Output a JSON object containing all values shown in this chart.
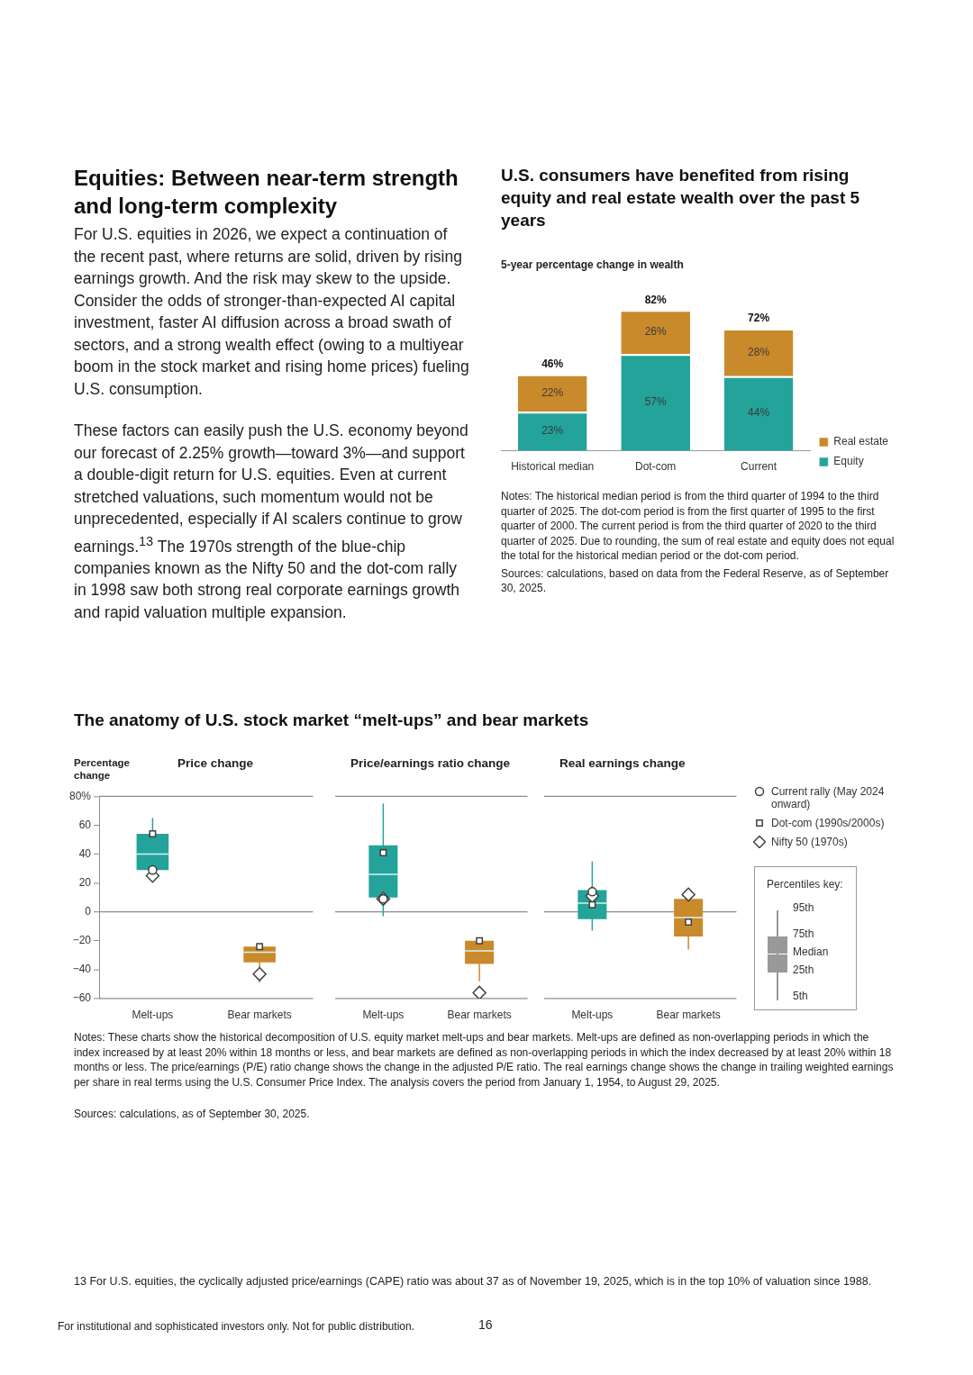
{
  "chart_data": [
    {
      "type": "other",
      "title": "Equities: Between near-term strength and long-term complexity",
      "annotations": [
        "For U.S. equities in 2026, we expect a continuation of the recent past, where returns are solid, driven by rising earnings growth. And the risk may skew to the upside. Consider the odds of stronger-than-expected AI capital investment, faster AI diffusion across a broad swath of sectors, and a strong wealth effect (owing to a multiyear boom in the stock market and rising home prices) fueling U.S. consumption.",
        "These factors can easily push the U.S. economy beyond our forecast of 2.25% growth—toward 3%—and support a double-digit return for U.S. equities. Even at current stretched valuations, such momentum would not be unprecedented, especially if AI scalers continue to grow earnings.$^{13}$ The 1970s strength of the blue-chip companies known as the Nifty 50 and the dot-com rally in 1998 saw both strong real corporate earnings growth and rapid valuation multiple expansion."
      ]
    },
    {
      "type": "bar",
      "stacked": true,
      "title": "U.S. consumers have benefited from rising equity and real estate wealth over the past 5 years",
      "subtitle": "5-year percentage change in wealth",
      "categories": [
        "Historical median",
        "Dot-com",
        "Current"
      ],
      "series": [
        {
          "name": "Equity",
          "color": "#24a39a",
          "values": [
            23,
            57,
            44
          ],
          "value_labels": [
            "23%",
            "57%",
            "44%"
          ]
        },
        {
          "name": "Real estate",
          "color": "#c98a2b",
          "values": [
            22,
            26,
            28
          ],
          "value_labels": [
            "22%",
            "26%",
            "28%"
          ]
        }
      ],
      "totals": [
        "46%",
        "82%",
        "72%"
      ],
      "legend": "right",
      "annotations": [
        "Notes: The historical median period is from the third quarter of 1994 to the third quarter of 2025. The dot-com period is from the first quarter of 1995 to the first quarter of 2000. The current period is from the third quarter of 2020 to the third quarter of 2025. Due to rounding, the sum of real estate and equity does not equal the total for the historical median period or the dot-com period.",
        "Sources: calculations, based on data from the Federal Reserve, as of September 30, 2025."
      ]
    },
    {
      "type": "other",
      "title": "The anatomy of U.S. stock market “melt-ups” and bear markets"
    },
    {
      "type": "box",
      "title": "Price change",
      "ylabel": "Percentage change",
      "categories": [
        "Melt-ups",
        "Bear markets"
      ],
      "ylim": [
        -60,
        80
      ],
      "yticks": [
        {
          "value": -60,
          "label": "−60"
        },
        {
          "value": -40,
          "label": "−40"
        },
        {
          "value": -20,
          "label": "−20"
        },
        0,
        20,
        40,
        60,
        {
          "value": 80,
          "label": "80%"
        }
      ],
      "ref_lines": [
        {
          "axis": "y",
          "value": 0,
          "color": "#8c8c8c"
        }
      ],
      "series": [
        {
          "type": "box",
          "colors": [
            "#24a39a",
            "#c98a2b"
          ],
          "boxes": [
            {
              "low": 27,
              "q1": 29,
              "median": 40,
              "q3": 54,
              "high": 65
            },
            {
              "low": -49,
              "q1": -35,
              "median": -28,
              "q3": -24,
              "high": -24
            }
          ]
        },
        {
          "type": "scatter",
          "marker": "circle",
          "color": "#404040",
          "x": [
            "Melt-ups",
            "Bear markets"
          ],
          "values": [
            29,
            null
          ]
        },
        {
          "type": "scatter",
          "marker": "square",
          "color": "#404040",
          "x": [
            "Melt-ups",
            "Bear markets"
          ],
          "values": [
            54,
            -24
          ]
        },
        {
          "type": "scatter",
          "marker": "diamond",
          "color": "#404040",
          "x": [
            "Melt-ups",
            "Bear markets"
          ],
          "values": [
            25,
            -43
          ]
        }
      ]
    },
    {
      "type": "box",
      "title": "Price/earnings ratio change",
      "categories": [
        "Melt-ups",
        "Bear markets"
      ],
      "ylim": [
        -60,
        80
      ],
      "tick_labels": "x",
      "ref_lines": [
        {
          "axis": "y",
          "value": 0,
          "color": "#8c8c8c"
        }
      ],
      "series": [
        {
          "type": "box",
          "colors": [
            "#24a39a",
            "#c98a2b"
          ],
          "boxes": [
            {
              "low": -3,
              "q1": 10,
              "median": 26,
              "q3": 46,
              "high": 75
            },
            {
              "low": -48,
              "q1": -36,
              "median": -27,
              "q3": -20,
              "high": -20
            }
          ]
        },
        {
          "type": "scatter",
          "marker": "circle",
          "color": "#404040",
          "x": [
            "Melt-ups",
            "Bear markets"
          ],
          "values": [
            9,
            null
          ]
        },
        {
          "type": "scatter",
          "marker": "square",
          "color": "#404040",
          "x": [
            "Melt-ups",
            "Bear markets"
          ],
          "values": [
            41,
            -20
          ]
        },
        {
          "type": "scatter",
          "marker": "diamond",
          "color": "#404040",
          "x": [
            "Melt-ups",
            "Bear markets"
          ],
          "values": [
            9,
            -56
          ]
        }
      ]
    },
    {
      "type": "box",
      "title": "Real earnings change",
      "categories": [
        "Melt-ups",
        "Bear markets"
      ],
      "ylim": [
        -60,
        80
      ],
      "tick_labels": "x",
      "legend": "right",
      "ref_lines": [
        {
          "axis": "y",
          "value": 0,
          "color": "#8c8c8c"
        }
      ],
      "annotations": [
        "Percentiles key:",
        "95th",
        "75th",
        "Median",
        "25th",
        "5th"
      ],
      "series": [
        {
          "type": "box",
          "colors": [
            "#24a39a",
            "#c98a2b"
          ],
          "boxes": [
            {
              "low": -13,
              "q1": -5,
              "median": 6,
              "q3": 15,
              "high": 35
            },
            {
              "low": -26,
              "q1": -17,
              "median": -4,
              "q3": 9,
              "high": 9
            }
          ]
        },
        {
          "type": "scatter",
          "name": "Current rally (May 2024 onward)",
          "marker": "circle",
          "color": "#404040",
          "x": [
            "Melt-ups",
            "Bear markets"
          ],
          "values": [
            14,
            null
          ]
        },
        {
          "type": "scatter",
          "name": "Dot-com (1990s/2000s)",
          "marker": "square",
          "color": "#404040",
          "x": [
            "Melt-ups",
            "Bear markets"
          ],
          "values": [
            5,
            -7
          ]
        },
        {
          "type": "scatter",
          "name": "Nifty 50 (1970s)",
          "marker": "diamond",
          "color": "#404040",
          "x": [
            "Melt-ups",
            "Bear markets"
          ],
          "values": [
            11,
            12
          ]
        }
      ]
    },
    {
      "type": "other",
      "annotations": [
        "Notes: These charts show the historical decomposition of U.S. equity market melt-ups and bear markets. Melt-ups are defined as non-overlapping periods in which the index increased by at least 20% within 18 months or less, and bear markets are defined as non-overlapping periods in which the index decreased by at least 20% within 18 months or less. The price/earnings (P/E) ratio change shows the change in the adjusted P/E ratio. The real earnings change shows the change in trailing weighted earnings per share in real terms using the U.S. Consumer Price Index. The analysis covers the period from January 1, 1954, to August 29, 2025.",
        "Sources: calculations, as of September 30, 2025.",
        "13 For U.S. equities, the cyclically adjusted price/earnings (CAPE) ratio was about 37 as of November 19, 2025, which is in the top 10% of valuation since 1988.",
        "For institutional and sophisticated investors only. Not for public distribution.",
        "16"
      ]
    }
  ]
}
